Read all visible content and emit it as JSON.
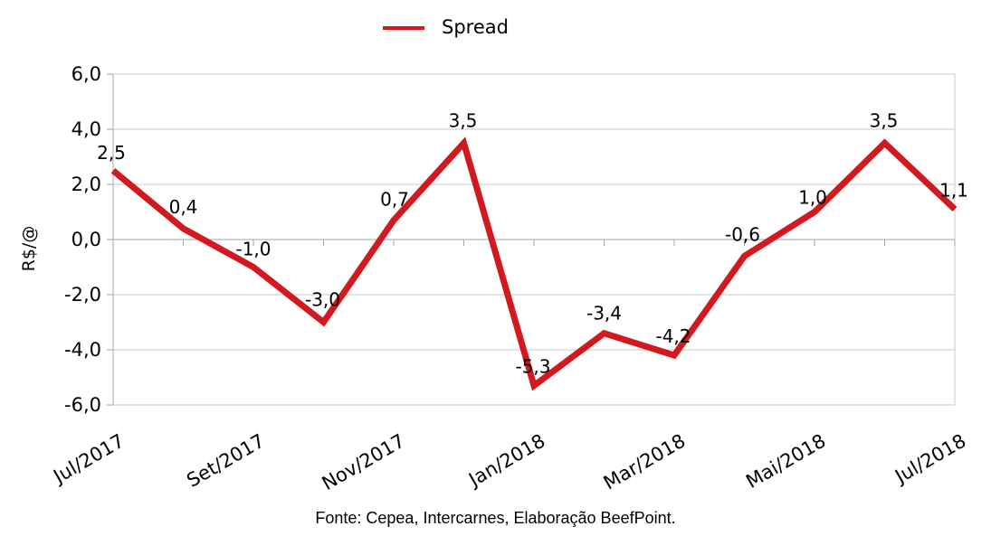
{
  "legend": {
    "label": "Spread"
  },
  "y_axis": {
    "title": "R$/@",
    "tick_labels": [
      "6,0",
      "4,0",
      "2,0",
      "0,0",
      "-2,0",
      "-4,0",
      "-6,0"
    ]
  },
  "x_axis": {
    "tick_labels": [
      "Jul/2017",
      "Set/2017",
      "Nov/2017",
      "Jan/2018",
      "Mar/2018",
      "Mai/2018",
      "Jul/2018"
    ]
  },
  "footer": {
    "text": "Fonte: Cepea, Intercarnes, Elaboração BeefPoint."
  },
  "colors": {
    "line": "#d2191f",
    "grid": "#c8c8c8",
    "axis": "#a3a3a3",
    "text": "#000000",
    "background": "#ffffff"
  },
  "chart_data": {
    "type": "line",
    "title": "",
    "ylabel": "R$/@",
    "xlabel": "",
    "ylim": [
      -6,
      6
    ],
    "y_tick_step": 2,
    "grid": true,
    "legend_position": "top",
    "x_tick_labels": [
      "Jul/2017",
      "Set/2017",
      "Nov/2017",
      "Jan/2018",
      "Mar/2018",
      "Mai/2018",
      "Jul/2018"
    ],
    "x_label_every": 2,
    "series": [
      {
        "name": "Spread",
        "color": "#d2191f",
        "values": [
          2.5,
          0.4,
          -1.0,
          -3.0,
          0.7,
          3.5,
          -5.3,
          -3.4,
          -4.2,
          -0.6,
          1.0,
          3.5,
          1.1
        ],
        "point_labels": [
          "2,5",
          "0,4",
          "-1,0",
          "-3,0",
          "0,7",
          "3,5",
          "-5,3",
          "-3,4",
          "-4,2",
          "-0,6",
          "1,0",
          "3,5",
          "1,1"
        ]
      }
    ]
  }
}
